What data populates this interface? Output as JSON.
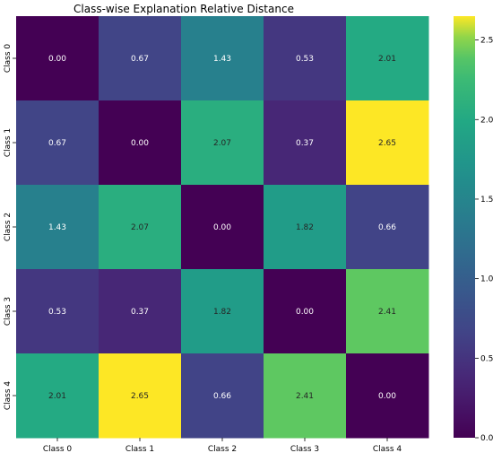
{
  "chart_data": {
    "type": "heatmap",
    "title": "Class-wise Explanation Relative Distance",
    "x_categories": [
      "Class 0",
      "Class 1",
      "Class 2",
      "Class 3",
      "Class 4"
    ],
    "y_categories": [
      "Class 0",
      "Class 1",
      "Class 2",
      "Class 3",
      "Class 4"
    ],
    "values": [
      [
        0.0,
        0.67,
        1.43,
        0.53,
        2.01
      ],
      [
        0.67,
        0.0,
        2.07,
        0.37,
        2.65
      ],
      [
        1.43,
        2.07,
        0.0,
        1.82,
        0.66
      ],
      [
        0.53,
        0.37,
        1.82,
        0.0,
        2.41
      ],
      [
        2.01,
        2.65,
        0.66,
        2.41,
        0.0
      ]
    ],
    "value_format": "2 decimals",
    "colormap": "viridis",
    "color_range": [
      0,
      2.65
    ],
    "colorbar_ticks": [
      "0.0",
      "0.5",
      "1.0",
      "1.5",
      "2.0",
      "2.5"
    ],
    "colorbar_tick_values": [
      0.0,
      0.5,
      1.0,
      1.5,
      2.0,
      2.5
    ],
    "colorbar_position": "right"
  }
}
